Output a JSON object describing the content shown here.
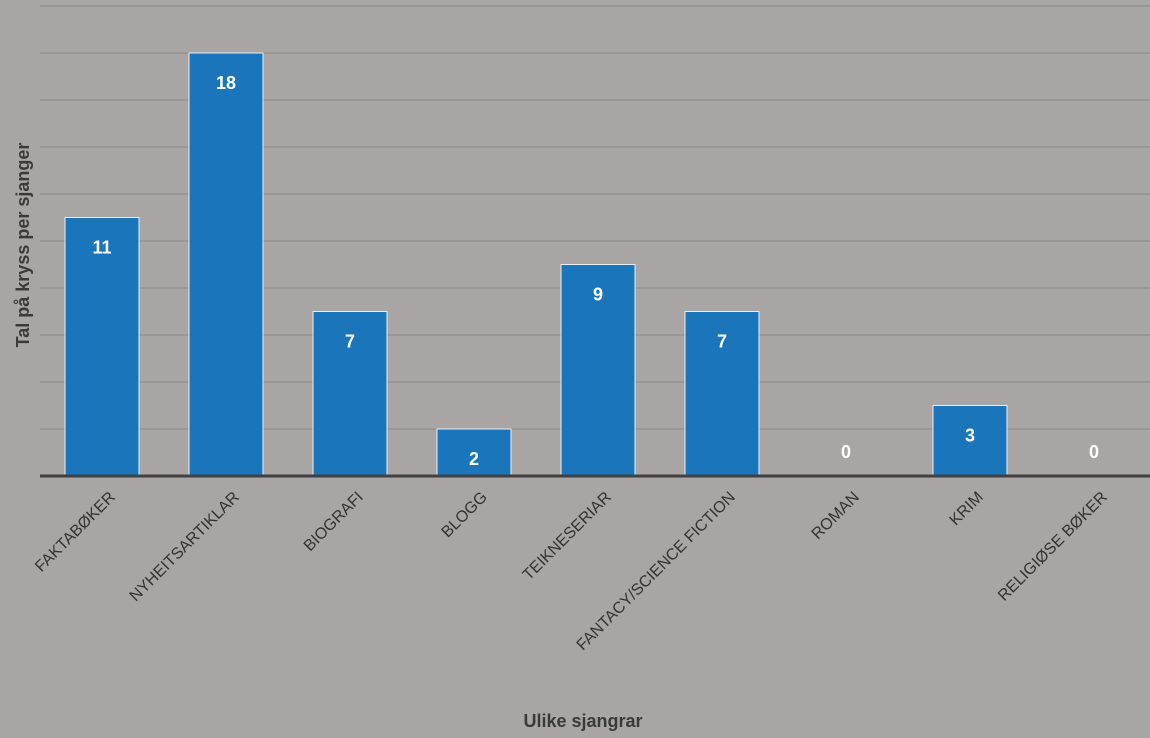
{
  "chart_data": {
    "type": "bar",
    "title": "",
    "xlabel": "Ulike sjangrar",
    "ylabel": "Tal på kryss per sjanger",
    "categories": [
      "FAKTABØKER",
      "NYHEITSARTIKLAR",
      "BIOGRAFI",
      "BLOGG",
      "TEIKNESERIAR",
      "FANTACY/SCIENCE FICTION",
      "ROMAN",
      "KRIM",
      "RELIGIØSE BØKER"
    ],
    "series": [
      {
        "values": [
          11,
          18,
          7,
          2,
          9,
          7,
          0,
          3,
          0
        ]
      }
    ],
    "data_labels": [
      "11",
      "18",
      "7",
      "2",
      "9",
      "7",
      "0",
      "3",
      "0"
    ],
    "ylim": [
      0,
      20
    ],
    "grid": true,
    "legend": "none",
    "colors": {
      "bar": "#1b75bb",
      "bar_edge": "#e6eef6",
      "gridline": "#8a8685",
      "axis": "#404040",
      "background": "#a9a5a4"
    }
  }
}
